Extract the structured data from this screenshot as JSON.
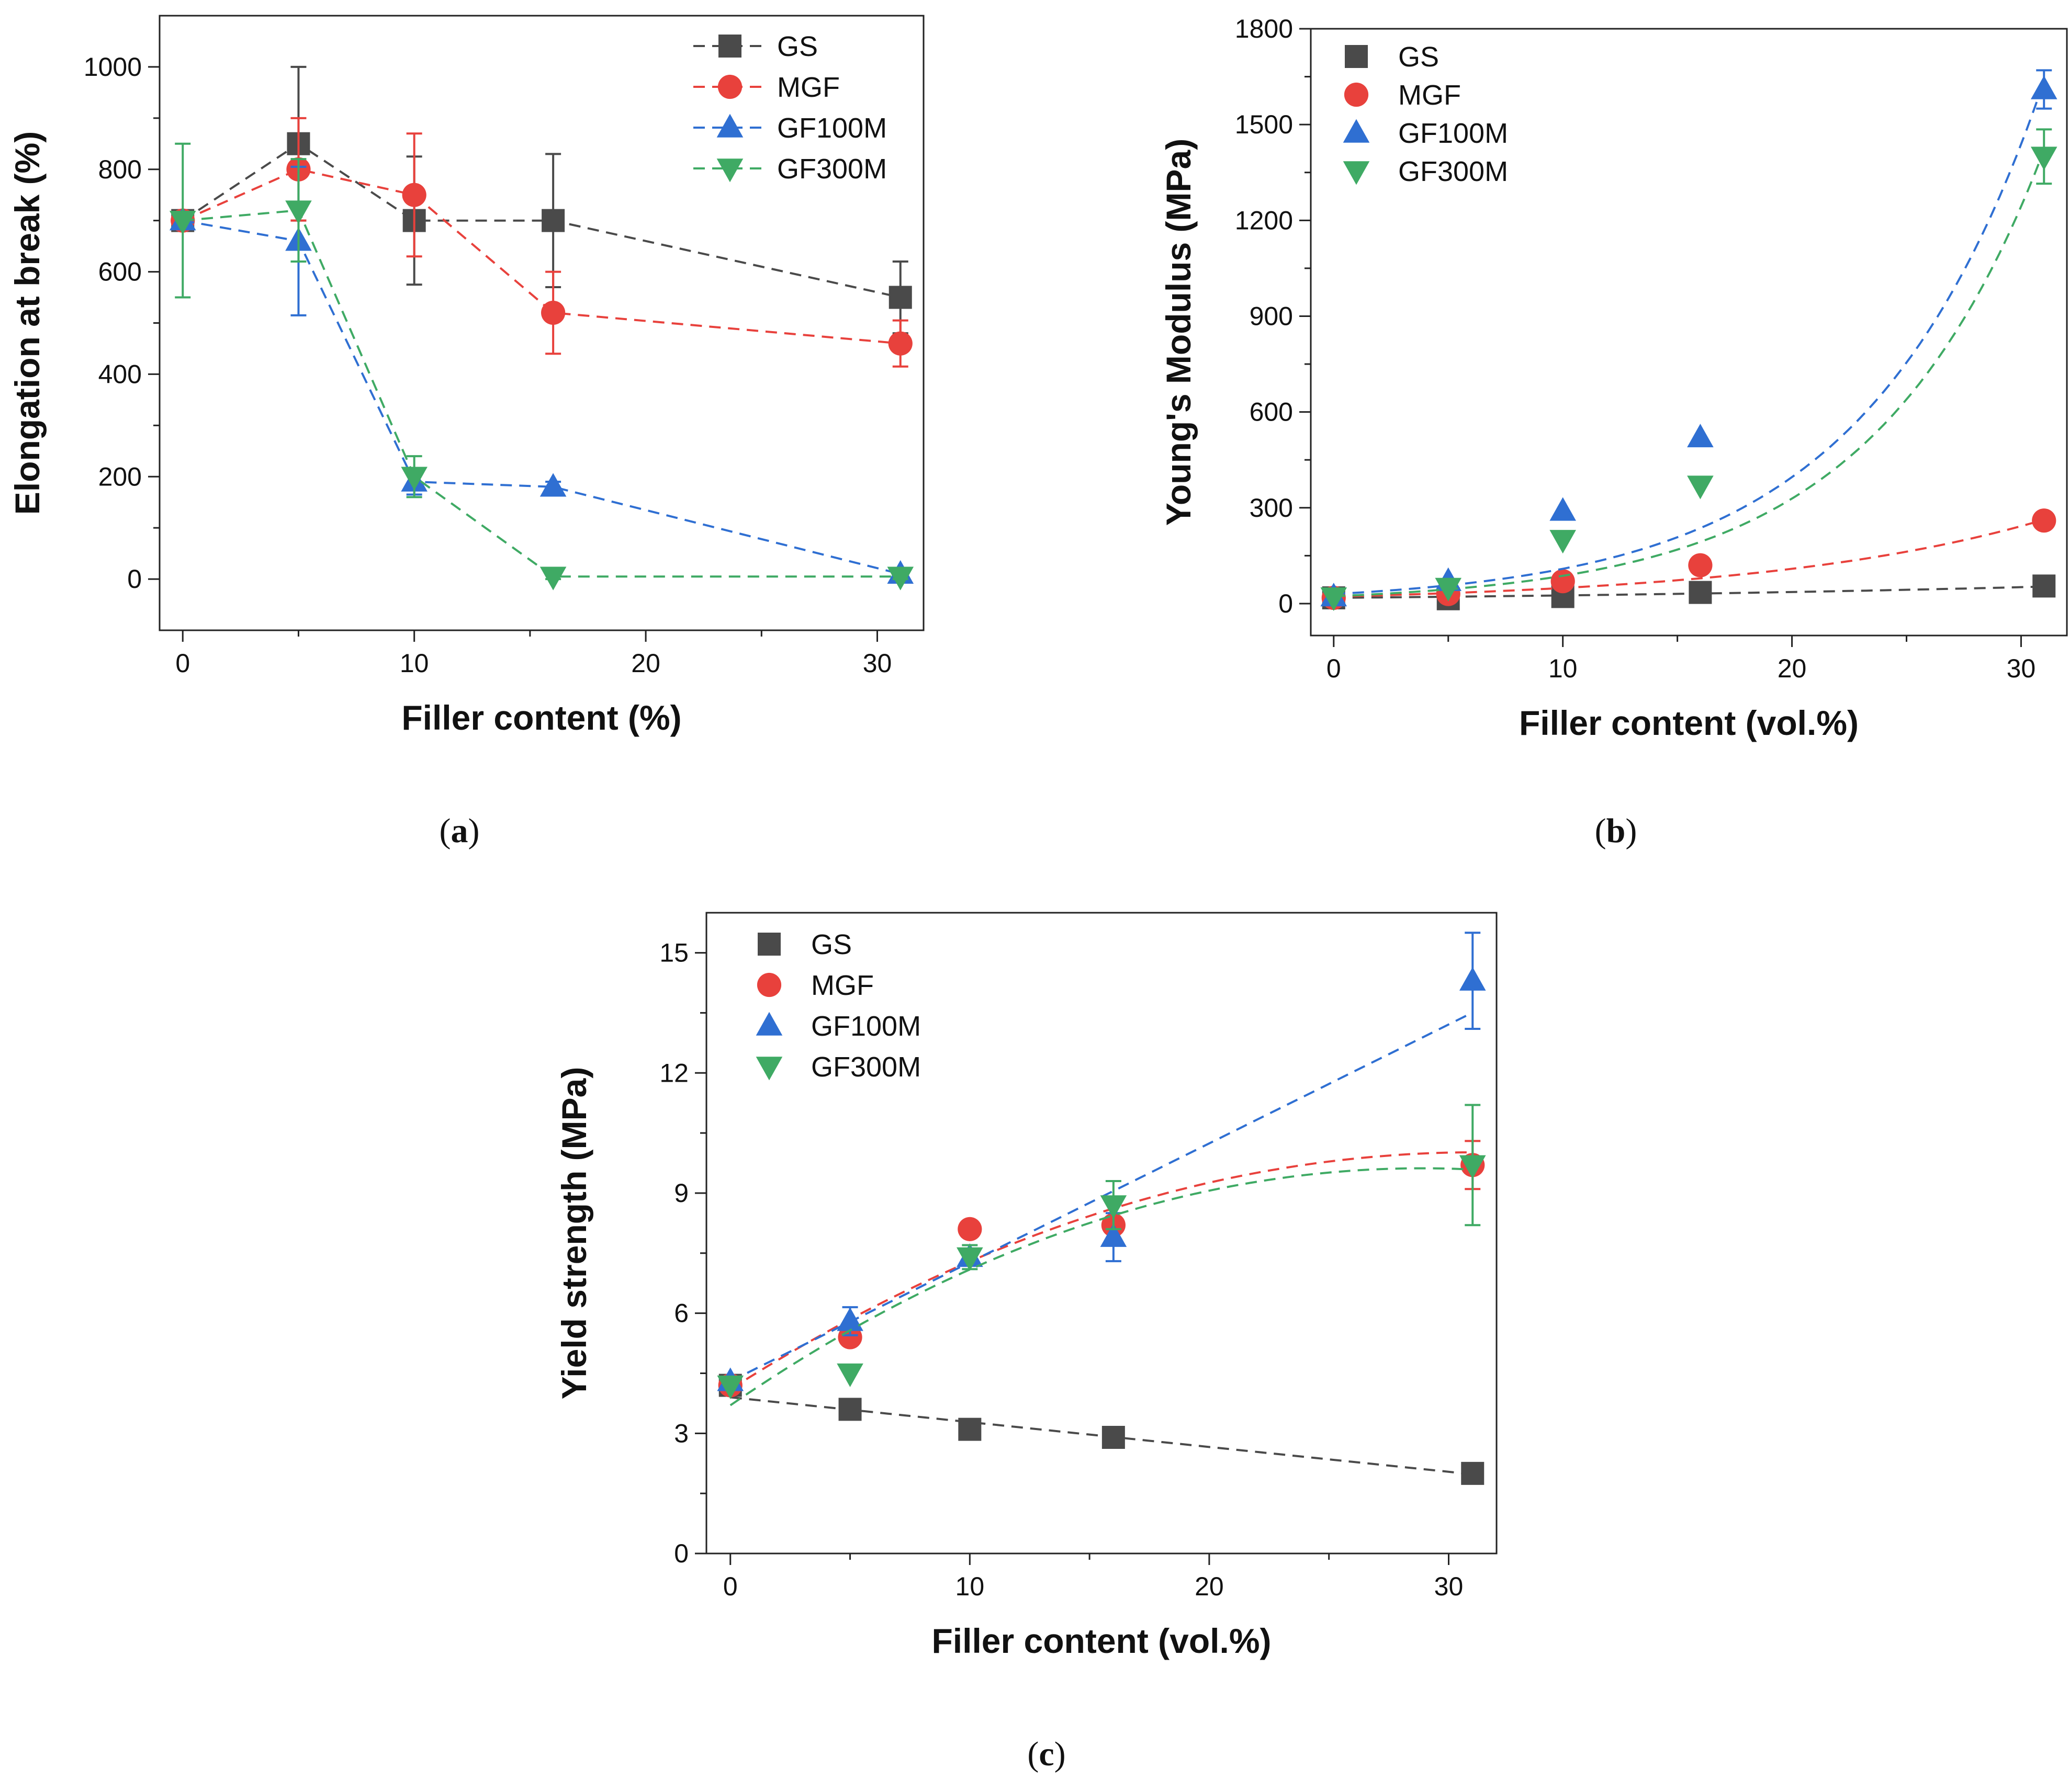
{
  "colors": {
    "GS": "#4a4a4a",
    "MGF": "#e8413c",
    "GF100M": "#2f6fd2",
    "GF300M": "#3faa64"
  },
  "chart_data": [
    {
      "id": "a",
      "caption": "(a)",
      "type": "line",
      "xlabel": "Filler content (%)",
      "ylabel": "Elongation at break (%)",
      "xlim": [
        -1,
        32
      ],
      "ylim": [
        -100,
        1100
      ],
      "xticks": [
        0,
        10,
        20,
        30
      ],
      "yticks": [
        0,
        200,
        400,
        600,
        800,
        1000
      ],
      "legend": "top-right",
      "series": [
        {
          "name": "GS",
          "marker": "square",
          "x": [
            0,
            5,
            10,
            16,
            31
          ],
          "y": [
            700,
            850,
            700,
            700,
            550
          ],
          "err": [
            0,
            150,
            125,
            130,
            70
          ],
          "fit": "connect"
        },
        {
          "name": "MGF",
          "marker": "circle",
          "x": [
            0,
            5,
            10,
            16,
            31
          ],
          "y": [
            700,
            800,
            750,
            520,
            460
          ],
          "err": [
            0,
            100,
            120,
            80,
            45
          ],
          "fit": "connect"
        },
        {
          "name": "GF100M",
          "marker": "triangle-up",
          "x": [
            0,
            5,
            10,
            16,
            31
          ],
          "y": [
            700,
            660,
            190,
            180,
            10
          ],
          "err": [
            0,
            145,
            25,
            10,
            5
          ],
          "fit": "connect"
        },
        {
          "name": "GF300M",
          "marker": "triangle-down",
          "x": [
            0,
            5,
            10,
            16,
            31
          ],
          "y": [
            700,
            720,
            200,
            5,
            5
          ],
          "err": [
            150,
            100,
            40,
            5,
            5
          ],
          "fit": "connect"
        }
      ]
    },
    {
      "id": "b",
      "caption": "(b)",
      "type": "scatter",
      "xlabel": "Filler content (vol.%)",
      "ylabel": "Young's Modulus (MPa)",
      "xlim": [
        -1,
        32
      ],
      "ylim": [
        -100,
        1800
      ],
      "xticks": [
        0,
        10,
        20,
        30
      ],
      "yticks": [
        0,
        300,
        600,
        900,
        1200,
        1500,
        1800
      ],
      "legend": "top-left",
      "series": [
        {
          "name": "GS",
          "marker": "square",
          "x": [
            0,
            5,
            10,
            16,
            31
          ],
          "y": [
            18,
            15,
            22,
            35,
            55
          ],
          "err": [
            0,
            0,
            0,
            0,
            0
          ],
          "fit": "exp",
          "fit_params": [
            18,
            0.035
          ]
        },
        {
          "name": "MGF",
          "marker": "circle",
          "x": [
            0,
            5,
            10,
            16,
            31
          ],
          "y": [
            18,
            30,
            70,
            120,
            260
          ],
          "err": [
            0,
            0,
            0,
            0,
            0
          ],
          "fit": "exp",
          "fit_params": [
            22,
            0.08
          ]
        },
        {
          "name": "GF100M",
          "marker": "triangle-up",
          "x": [
            0,
            5,
            10,
            16,
            31
          ],
          "y": [
            22,
            70,
            290,
            520,
            1610
          ],
          "err": [
            0,
            0,
            0,
            0,
            60
          ],
          "fit": "exp",
          "fit_params": [
            30,
            0.129
          ]
        },
        {
          "name": "GF300M",
          "marker": "triangle-down",
          "x": [
            0,
            5,
            10,
            16,
            31
          ],
          "y": [
            20,
            50,
            200,
            370,
            1400
          ],
          "err": [
            0,
            0,
            0,
            0,
            85
          ],
          "fit": "exp",
          "fit_params": [
            23,
            0.133
          ]
        }
      ]
    },
    {
      "id": "c",
      "caption": "(c)",
      "type": "scatter",
      "xlabel": "Filler content (vol.%)",
      "ylabel": "Yield strength (MPa)",
      "xlim": [
        -1,
        32
      ],
      "ylim": [
        0,
        16
      ],
      "xticks": [
        0,
        10,
        20,
        30
      ],
      "yticks": [
        0,
        3,
        6,
        9,
        12,
        15
      ],
      "legend": "top-left",
      "series": [
        {
          "name": "GS",
          "marker": "square",
          "x": [
            0,
            5,
            10,
            16,
            31
          ],
          "y": [
            4.2,
            3.6,
            3.1,
            2.9,
            2.0
          ],
          "err": [
            0,
            0,
            0,
            0,
            0
          ],
          "fit": "poly",
          "fit_params": [
            3.9,
            -0.062,
            0
          ]
        },
        {
          "name": "MGF",
          "marker": "circle",
          "x": [
            0,
            5,
            10,
            16,
            31
          ],
          "y": [
            4.2,
            5.4,
            8.1,
            8.2,
            9.7
          ],
          "err": [
            0,
            0,
            0,
            0,
            0.6
          ],
          "fit": "poly",
          "fit_params": [
            4.1,
            0.38,
            -0.0061
          ]
        },
        {
          "name": "GF100M",
          "marker": "triangle-up",
          "x": [
            0,
            5,
            10,
            16,
            31
          ],
          "y": [
            4.3,
            5.8,
            7.4,
            7.9,
            14.3
          ],
          "err": [
            0,
            0.35,
            0,
            0.6,
            1.2
          ],
          "fit": "poly",
          "fit_params": [
            4.3,
            0.297,
            0
          ]
        },
        {
          "name": "GF300M",
          "marker": "triangle-down",
          "x": [
            0,
            5,
            10,
            16,
            31
          ],
          "y": [
            4.2,
            4.5,
            7.4,
            8.7,
            9.7
          ],
          "err": [
            0,
            0,
            0.3,
            0.6,
            1.5
          ],
          "fit": "poly",
          "fit_params": [
            3.7,
            0.41,
            -0.0071
          ]
        }
      ]
    }
  ]
}
